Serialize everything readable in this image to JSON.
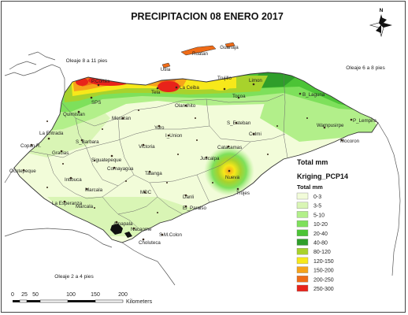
{
  "map": {
    "title": "PRECIPITACION 08 ENERO 2017",
    "north_label": "N",
    "sea_notes": [
      "Oleaje 8 a 11 pies",
      "Oleaje 6 a 8 pies",
      "Oleaje 2 a 4 pies"
    ],
    "islands": [
      "Roatan",
      "Guanaja",
      "Utila"
    ],
    "cities": [
      "P.Cortés",
      "La Ceiba",
      "Trujillo",
      "Limon",
      "Tela",
      "Tocoa",
      "SPS",
      "Quimistan",
      "Olanchito",
      "Morazan",
      "B_Laguna",
      "Wampusirpe",
      "P_Lempira",
      "La Entrada",
      "Copan R.",
      "S_Barbara",
      "Gracias",
      "Yoro",
      "Victoria",
      "S_Esteban",
      "Culmi",
      "I_Union",
      "Catacamas",
      "Mocoron",
      "Ocotepeque",
      "Siguatepeque",
      "Comayagua",
      "Juticalpa",
      "Intibuca",
      "Marcala",
      "Talanga",
      "Nueva",
      "Trojes",
      "La Esperanza",
      "Marcala",
      "MDC",
      "Danli",
      "El_Paraiso",
      "Amapala",
      "Nacaome",
      "S.M.Colon",
      "Choluteca"
    ]
  },
  "legend": {
    "header": "Total mm",
    "layer_name": "Kriging_PCP14",
    "subheader": "Total mm",
    "classes": [
      {
        "label": "0-3",
        "color": "#f2fcd9"
      },
      {
        "label": "3-5",
        "color": "#d9f5b5"
      },
      {
        "label": "5-10",
        "color": "#b2ef8a"
      },
      {
        "label": "10-20",
        "color": "#7ee05b"
      },
      {
        "label": "20-40",
        "color": "#4cc436"
      },
      {
        "label": "40-80",
        "color": "#2f9e2a"
      },
      {
        "label": "80-120",
        "color": "#a8d22c"
      },
      {
        "label": "120-150",
        "color": "#f7e81a"
      },
      {
        "label": "150-200",
        "color": "#f6a31a"
      },
      {
        "label": "200-250",
        "color": "#ef6b17"
      },
      {
        "label": "250-300",
        "color": "#e8231a"
      }
    ]
  },
  "scalebar": {
    "ticks": [
      "0",
      "25",
      "50",
      "100",
      "150",
      "200"
    ],
    "unit": "Kilometers"
  }
}
